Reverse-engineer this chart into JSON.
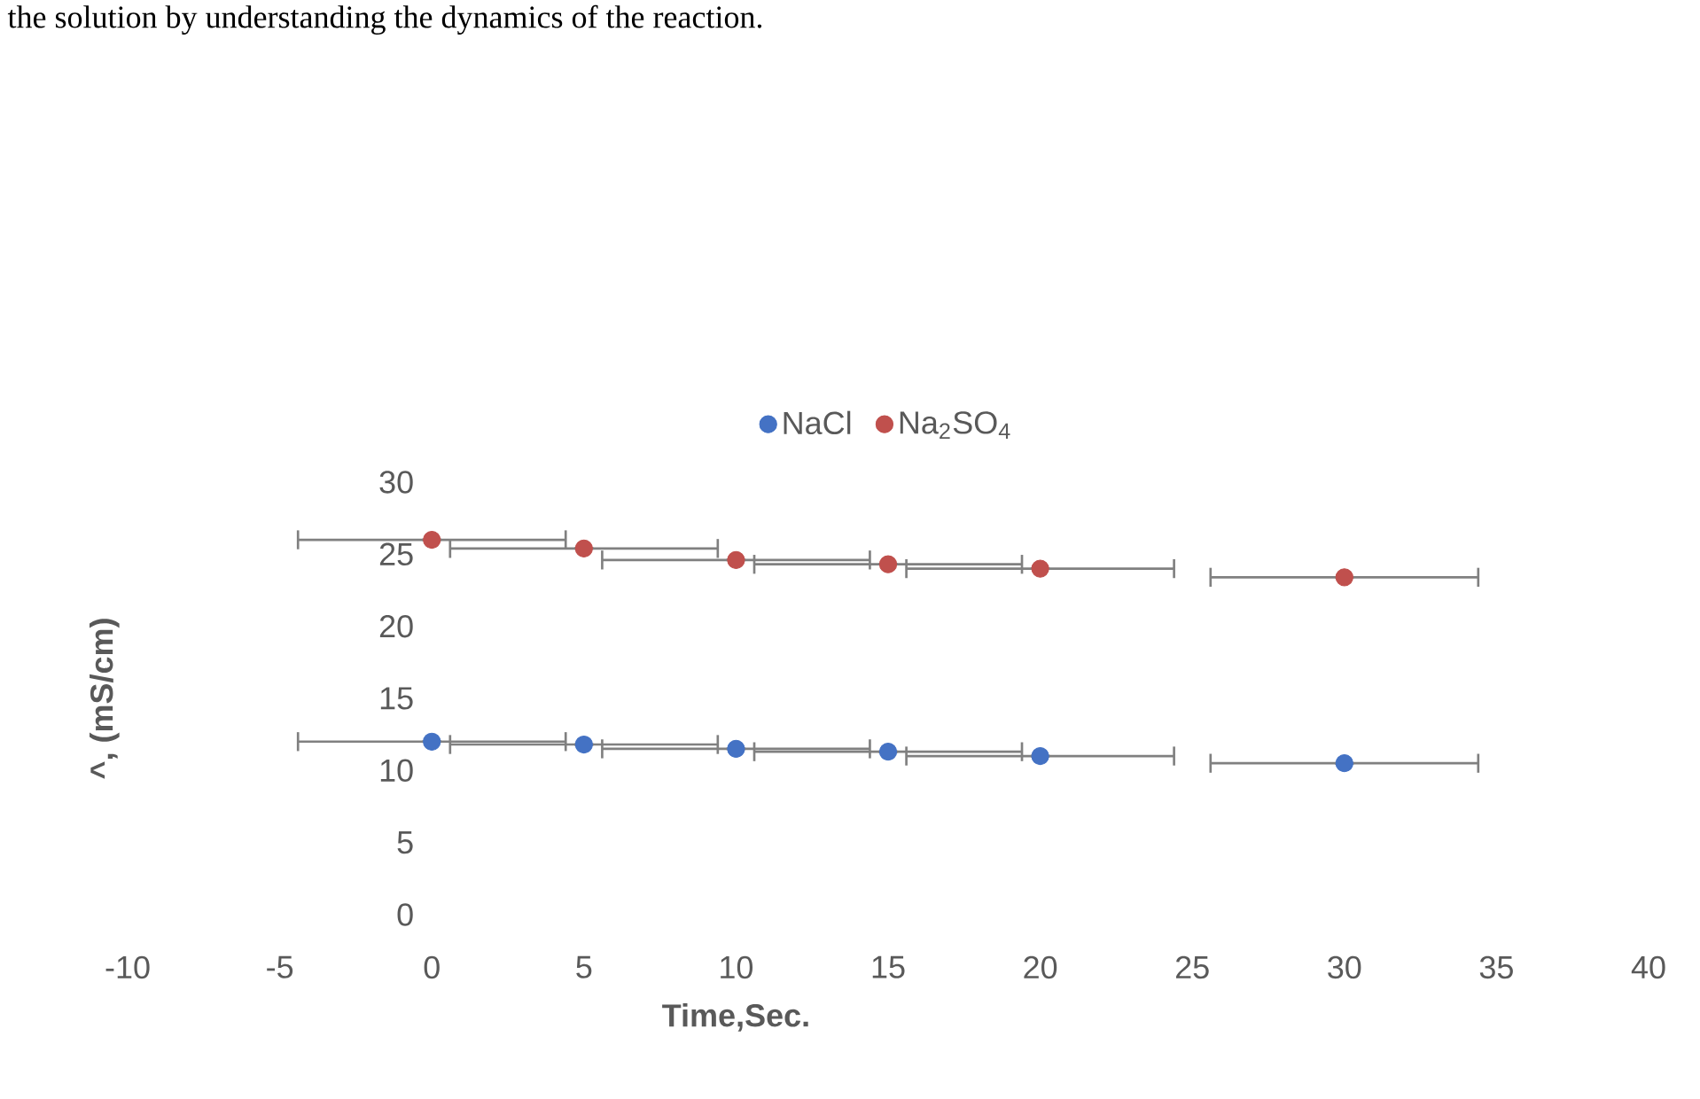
{
  "chart_data": {
    "type": "scatter",
    "xlabel": "Time,Sec.",
    "ylabel": "^, (mS/cm)",
    "annotations": [
      "the solution by understanding the dynamics of the reaction."
    ],
    "x": [
      0,
      5,
      10,
      15,
      20,
      30
    ],
    "series": [
      {
        "name": "NaCl",
        "color": "#4472c4",
        "values": [
          12.0,
          11.8,
          11.5,
          11.3,
          11.0,
          10.5
        ],
        "xerrors": [
          4.4,
          4.4,
          4.4,
          4.4,
          4.4,
          4.4
        ]
      },
      {
        "name": "Na$_{2}$SO$_{4}$",
        "color": "#c0504d",
        "values": [
          26.0,
          25.4,
          24.6,
          24.3,
          24.0,
          23.4
        ],
        "xerrors": [
          4.4,
          4.4,
          4.4,
          4.4,
          4.4,
          4.4
        ]
      }
    ],
    "xlim": [
      -10,
      40
    ],
    "xticks": [
      -10,
      -5,
      0,
      5,
      10,
      15,
      20,
      25,
      30,
      35,
      40
    ],
    "ylim": [
      0,
      30
    ],
    "yticks": [
      0,
      5,
      10,
      15,
      20,
      25,
      30
    ],
    "marker": "circle",
    "legend": "top",
    "grid": false
  }
}
